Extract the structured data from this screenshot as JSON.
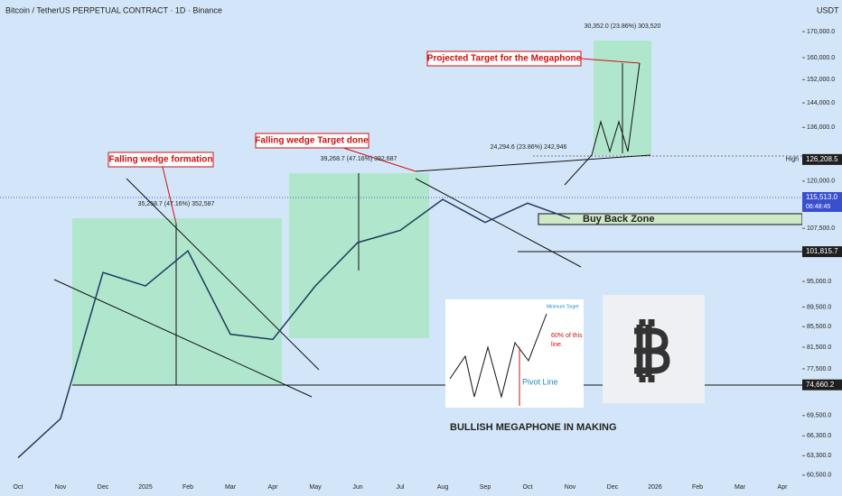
{
  "header": {
    "title": "Bitcoin / TetherUS PERPETUAL CONTRACT · 1D · Binance",
    "currency": "USDT"
  },
  "chart_data": {
    "type": "line",
    "log_scale": true,
    "color": "#1e3a5f",
    "categories": [
      "Oct",
      "Nov",
      "Dec",
      "2025",
      "Feb",
      "Mar",
      "Apr",
      "May",
      "Jun",
      "Jul",
      "Aug",
      "Sep",
      "Oct",
      "Nov",
      "Dec",
      "2026",
      "Feb",
      "Mar",
      "Apr"
    ],
    "values": [
      63000,
      69000,
      97000,
      94000,
      102000,
      84000,
      83000,
      94000,
      104000,
      107000,
      115000,
      109000,
      114000,
      110000,
      null,
      null,
      null,
      null,
      null
    ],
    "ylim": [
      60100,
      183000
    ],
    "yticks": [
      {
        "value": 170000,
        "label": "170,000.0"
      },
      {
        "value": 160000,
        "label": "160,000.0"
      },
      {
        "value": 152000,
        "label": "152,000.0"
      },
      {
        "value": 144000,
        "label": "144,000.0"
      },
      {
        "value": 136000,
        "label": "136,000.0"
      },
      {
        "value": 120000,
        "label": "120,000.0"
      },
      {
        "value": 107500,
        "label": "107,500.0"
      },
      {
        "value": 95000,
        "label": "95,000.0"
      },
      {
        "value": 89500,
        "label": "89,500.0"
      },
      {
        "value": 85500,
        "label": "85,500.0"
      },
      {
        "value": 81500,
        "label": "81,500.0"
      },
      {
        "value": 77500,
        "label": "77,500.0"
      },
      {
        "value": 69500,
        "label": "69,500.0"
      },
      {
        "value": 66300,
        "label": "66,300.0"
      },
      {
        "value": 63300,
        "label": "63,300.0"
      },
      {
        "value": 60500,
        "label": "60,500.0"
      }
    ]
  },
  "price_labels": [
    {
      "value": 126208.5,
      "label": "126,208.5",
      "tag": "High"
    },
    {
      "value": 115513.0,
      "label": "115,513.0",
      "countdown": "06:48:45"
    },
    {
      "value": 101815.7,
      "label": "101,815.7"
    },
    {
      "value": 74660.2,
      "label": "74,660.2"
    }
  ],
  "annotations": {
    "wedge": "Falling wedge formation",
    "wedge_done": "Falling wedge Target done",
    "projected": "Projected Target for the Megaphone",
    "buy_back": "Buy Back Zone",
    "measure1": "35,258.7 (47.16%) 352,587",
    "measure2": "39,268.7 (47.16%) 392,687",
    "measure3": "24,294.6 (23.86%) 242,946",
    "measure4": "30,352.0 (23.86%) 303,520"
  },
  "inset": {
    "caption": "BULLISH MEGAPHONE IN MAKING",
    "min_target": "Minimum Target",
    "pct": "60% of this",
    "pct2": "line.",
    "pivot": "Pivot Line"
  }
}
